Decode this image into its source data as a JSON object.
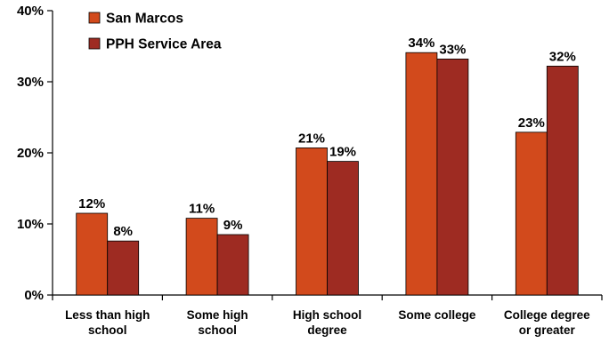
{
  "chart_data": {
    "type": "bar",
    "categories": [
      [
        "Less than high",
        "school"
      ],
      [
        "Some high",
        "school"
      ],
      [
        "High school",
        "degree"
      ],
      [
        "Some college"
      ],
      [
        "College degree",
        "or greater"
      ]
    ],
    "series": [
      {
        "name": "San Marcos",
        "color": "#D24A1C",
        "values": [
          11.5,
          10.8,
          20.7,
          34.1,
          22.9
        ],
        "labels": [
          "12%",
          "11%",
          "21%",
          "34%",
          "23%"
        ]
      },
      {
        "name": "PPH Service Area",
        "color": "#9E2B22",
        "values": [
          7.6,
          8.5,
          18.8,
          33.2,
          32.2
        ],
        "labels": [
          "8%",
          "9%",
          "19%",
          "33%",
          "32%"
        ]
      }
    ],
    "ylim": [
      0,
      40
    ],
    "yticks": [
      0,
      10,
      20,
      30,
      40
    ],
    "ytick_labels": [
      "0%",
      "10%",
      "20%",
      "30%",
      "40%"
    ],
    "title": "",
    "xlabel": "",
    "ylabel": "",
    "grid": false,
    "legend_position": "top-left"
  }
}
